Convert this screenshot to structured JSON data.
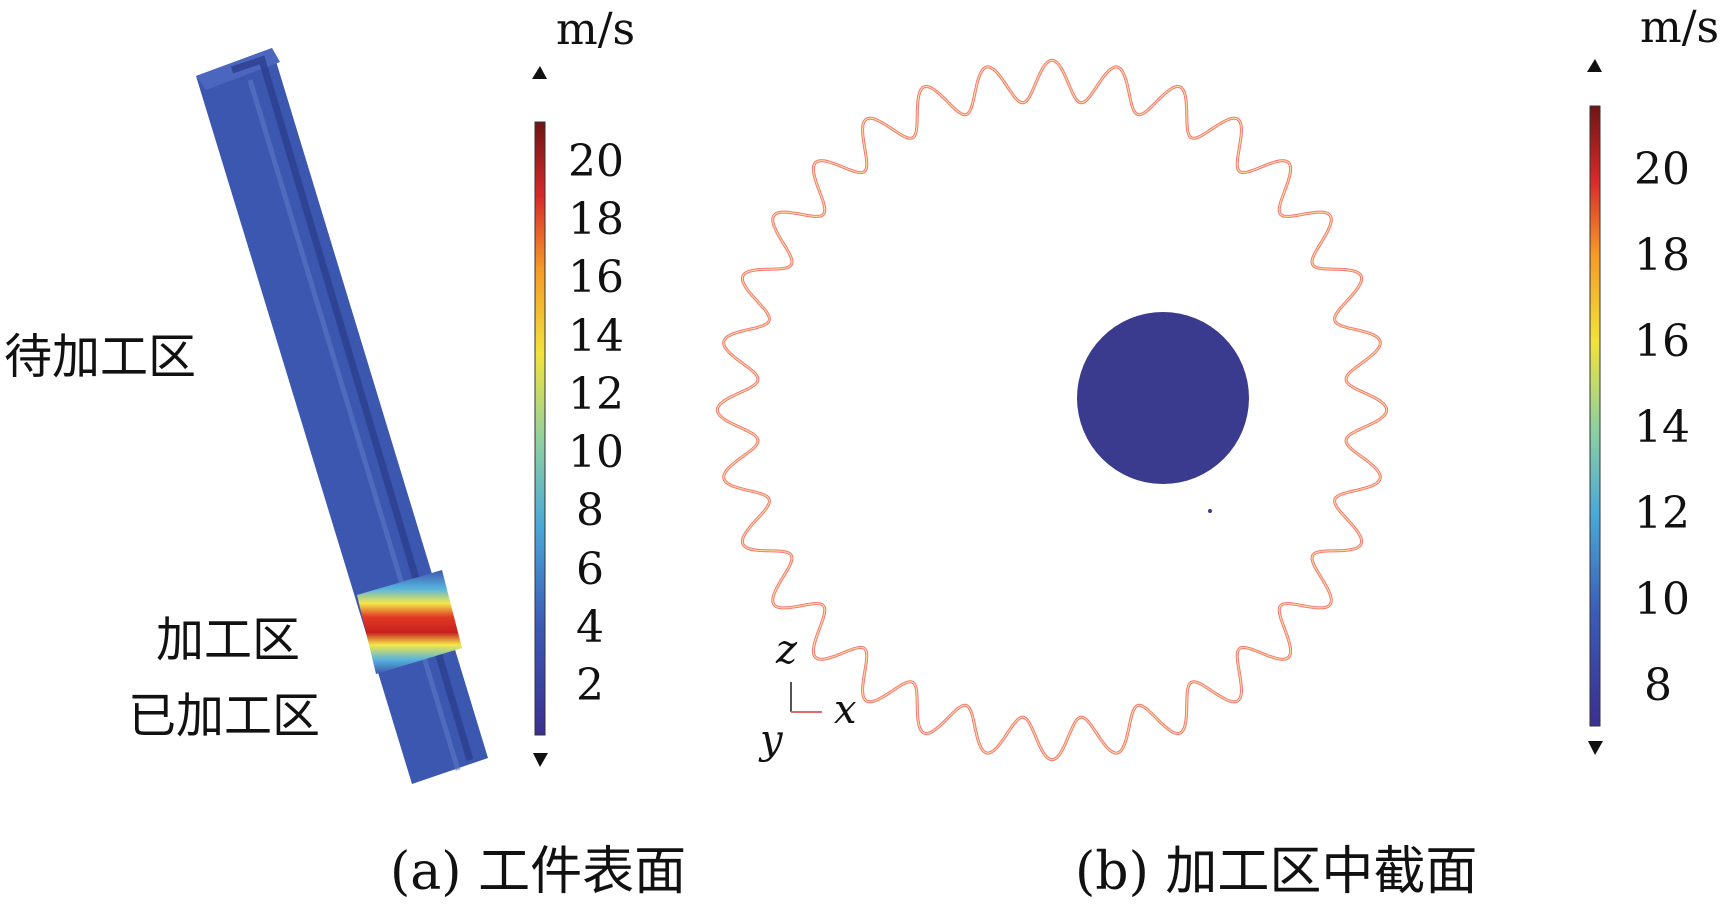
{
  "panel_a": {
    "labels": {
      "unprocessed": "待加工区",
      "processing": "加工区",
      "processed": "已加工区"
    },
    "colorbar": {
      "unit": "m/s",
      "ticks": [
        "20",
        "18",
        "16",
        "14",
        "12",
        "10",
        "8",
        "6",
        "4",
        "2"
      ]
    },
    "caption": "(a) 工件表面"
  },
  "panel_b": {
    "colorbar": {
      "unit": "m/s",
      "ticks": [
        "20",
        "18",
        "16",
        "14",
        "12",
        "10",
        "8"
      ]
    },
    "axes": {
      "z": "z",
      "x": "x",
      "y": "y"
    },
    "gear_teeth": 32,
    "caption": "(b) 加工区中截面"
  },
  "colors": {
    "low": "#3b3f98",
    "high": "#b2182b",
    "workpiece_body": "#3c57b0",
    "hub": "#3a3a8e"
  }
}
